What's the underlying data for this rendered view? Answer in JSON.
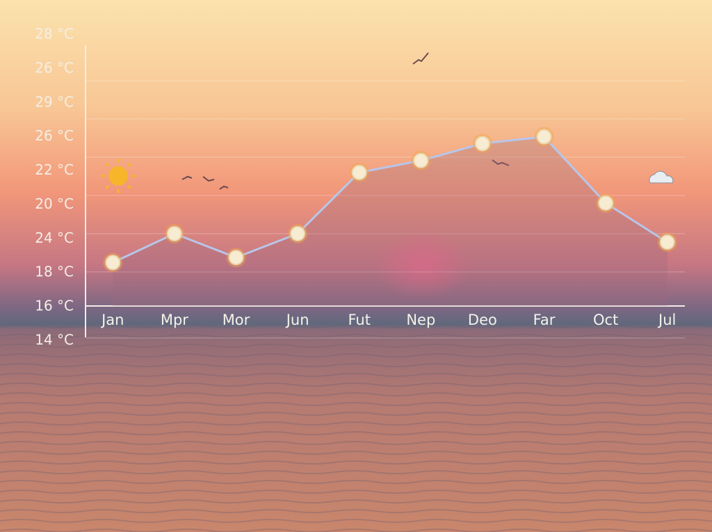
{
  "chart_data": {
    "type": "line",
    "y_labels": [
      "14 °C",
      "16 °C",
      "18 °C",
      "24 °C",
      "20 °C",
      "22 °C",
      "26 °C",
      "29 °C",
      "26 °C",
      "28 °C"
    ],
    "ylim": [
      14,
      32
    ],
    "categories": [
      "Jan",
      "Mpr",
      "Mor",
      "Jun",
      "Fut",
      "Nep",
      "Deo",
      "Far",
      "Oct",
      "Jul"
    ],
    "values": [
      18.6,
      20.3,
      18.9,
      20.3,
      23.9,
      24.6,
      25.6,
      26.0,
      22.1,
      19.8
    ],
    "color": "#b7c6ea"
  }
}
